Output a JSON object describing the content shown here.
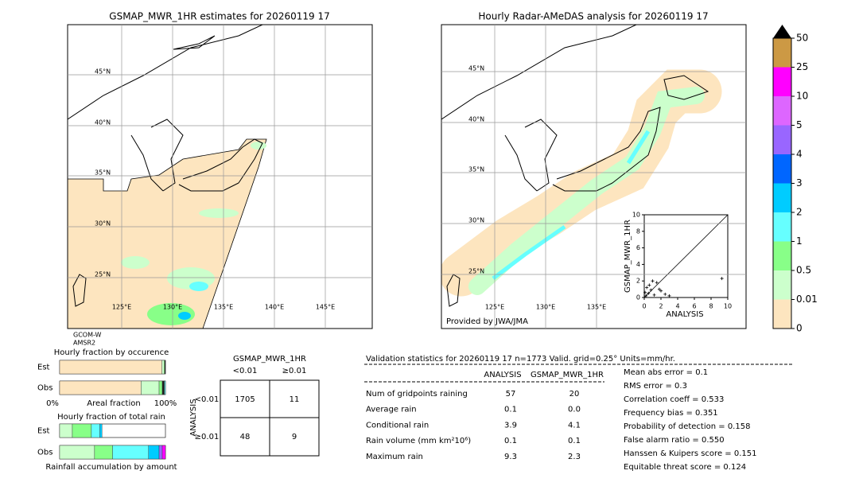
{
  "left_map": {
    "title": "GSMAP_MWR_1HR estimates for 20260119 17",
    "lat_labels": [
      "45°N",
      "40°N",
      "35°N",
      "30°N",
      "25°N"
    ],
    "lon_labels": [
      "125°E",
      "130°E",
      "135°E",
      "140°E",
      "145°E"
    ],
    "footnote": [
      "GCOM-W",
      "AMSR2"
    ]
  },
  "right_map": {
    "title": "Hourly Radar-AMeDAS analysis for 20260119 17",
    "lat_labels": [
      "45°N",
      "40°N",
      "35°N",
      "30°N",
      "25°N"
    ],
    "lon_labels": [
      "125°E",
      "130°E",
      "135°E"
    ],
    "credit": "Provided by JWA/JMA"
  },
  "colorbar": {
    "levels": [
      0,
      0.01,
      0.5,
      1,
      2,
      3,
      4,
      5,
      10,
      25,
      50
    ],
    "colors": [
      "#fde5bf",
      "#ccffcc",
      "#88ff88",
      "#66ffff",
      "#00ccff",
      "#0066ff",
      "#9966ff",
      "#dd66ff",
      "#ff00ff",
      "#cc9944"
    ]
  },
  "scatter": {
    "xlabel": "ANALYSIS",
    "ylabel": "GSMAP_MWR_1HR",
    "ticks": [
      0,
      2,
      4,
      6,
      8,
      10
    ],
    "xlim": [
      0,
      10
    ],
    "ylim": [
      0,
      10
    ],
    "points": [
      [
        9.3,
        2.3
      ],
      [
        1.5,
        1.8
      ],
      [
        1.0,
        2.0
      ],
      [
        2.0,
        0.8
      ],
      [
        0.5,
        0.5
      ],
      [
        0.3,
        1.2
      ],
      [
        1.2,
        0.3
      ],
      [
        0.8,
        0.9
      ],
      [
        2.5,
        0.4
      ],
      [
        0.2,
        0.2
      ],
      [
        1.8,
        1.0
      ],
      [
        3.0,
        0.2
      ],
      [
        0.6,
        1.5
      ],
      [
        0.1,
        0.6
      ]
    ]
  },
  "occurrence": {
    "title": "Hourly fraction by occurence",
    "rows": [
      "Est",
      "Obs"
    ],
    "axis_labels": [
      "0%",
      "Areal fraction",
      "100%"
    ],
    "fractions": [
      [
        0.967,
        0.02,
        0.008,
        0.005
      ],
      [
        0.77,
        0.17,
        0.03,
        0.02,
        0.01
      ]
    ],
    "colors": [
      "#fde5bf",
      "#ccffcc",
      "#88ff88",
      "#222222",
      "#66ffff"
    ]
  },
  "total_rain": {
    "title": "Hourly fraction of total rain",
    "rows": [
      "Est",
      "Obs"
    ],
    "xlabel": "Rainfall accumulation by amount",
    "fractions": [
      [
        0.12,
        0.18,
        0.08,
        0.02
      ],
      [
        0.33,
        0.17,
        0.34,
        0.1,
        0.03,
        0.03
      ]
    ],
    "colors": [
      "#ccffcc",
      "#88ff88",
      "#66ffff",
      "#00ccff",
      "#9966ff",
      "#ff00ff"
    ]
  },
  "contingency": {
    "title": "GSMAP_MWR_1HR",
    "columns": [
      "<0.01",
      "≥0.01"
    ],
    "row_title": "ANALYSIS",
    "rows": [
      "<0.01",
      "≥0.01"
    ],
    "cells": [
      [
        "1705",
        "11"
      ],
      [
        "48",
        "9"
      ]
    ]
  },
  "validation": {
    "header": "Validation statistics for 20260119 17  n=1773 Valid. grid=0.25° Units=mm/hr.",
    "columns": [
      "ANALYSIS",
      "GSMAP_MWR_1HR"
    ],
    "rows": [
      [
        "Num of gridpoints raining",
        "57",
        "20"
      ],
      [
        "Average rain",
        "0.1",
        "0.0"
      ],
      [
        "Conditional rain",
        "3.9",
        "4.1"
      ],
      [
        "Rain volume (mm km²10⁶)",
        "0.1",
        "0.1"
      ],
      [
        "Maximum rain",
        "9.3",
        "2.3"
      ]
    ],
    "scores": [
      "Mean abs error =    0.1",
      "RMS error =    0.3",
      "Correlation coeff =  0.533",
      "Frequency bias =  0.351",
      "Probability of detection =  0.158",
      "False alarm ratio =  0.550",
      "Hanssen & Kuipers score =  0.151",
      "Equitable threat score =  0.124"
    ]
  }
}
